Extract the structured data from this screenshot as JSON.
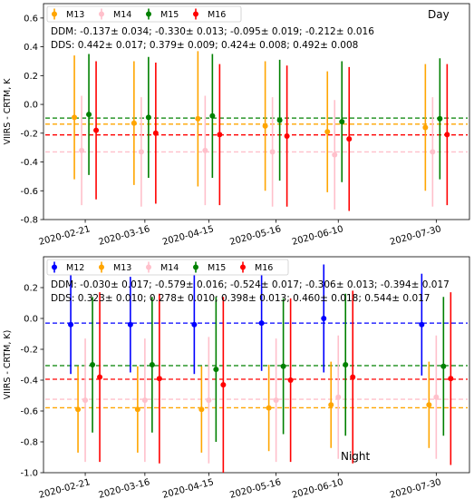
{
  "chart_data": [
    {
      "type": "scatter",
      "panel_label": "Day",
      "ylabel": "VIIRS - CRTM, K",
      "ylim": [
        -0.8,
        0.7
      ],
      "yticks": [
        "0.6",
        "0.4",
        "0.2",
        "0.0",
        "-0.2",
        "-0.4",
        "-0.6",
        "-0.8"
      ],
      "x": [
        "2020-02-21",
        "2020-03-16",
        "2020-04-15",
        "2020-05-16",
        "2020-06-10",
        "2020-07-30"
      ],
      "legend_placement": "top-left",
      "stats": {
        "ddm": "DDM: -0.137± 0.034; -0.330± 0.013; -0.095± 0.019; -0.212± 0.016",
        "dds": "DDS:  0.442± 0.017;  0.379± 0.009;  0.424± 0.008;  0.492± 0.008"
      },
      "series": [
        {
          "name": "M13",
          "color": "#ffa500",
          "mean": -0.137,
          "y": [
            -0.09,
            -0.13,
            -0.1,
            -0.15,
            -0.19,
            -0.16
          ],
          "err": [
            0.43,
            0.43,
            0.47,
            0.45,
            0.42,
            0.44
          ]
        },
        {
          "name": "M14",
          "color": "#ffc0cb",
          "mean": -0.33,
          "y": [
            -0.32,
            -0.33,
            -0.32,
            -0.33,
            -0.35,
            -0.33
          ],
          "err": [
            0.38,
            0.38,
            0.38,
            0.38,
            0.38,
            0.38
          ]
        },
        {
          "name": "M15",
          "color": "#008000",
          "mean": -0.095,
          "y": [
            -0.07,
            -0.09,
            -0.08,
            -0.11,
            -0.12,
            -0.1
          ],
          "err": [
            0.42,
            0.42,
            0.43,
            0.42,
            0.42,
            0.42
          ]
        },
        {
          "name": "M16",
          "color": "#ff0000",
          "mean": -0.212,
          "y": [
            -0.18,
            -0.2,
            -0.21,
            -0.22,
            -0.24,
            -0.21
          ],
          "err": [
            0.48,
            0.49,
            0.49,
            0.49,
            0.5,
            0.49
          ]
        }
      ]
    },
    {
      "type": "scatter",
      "panel_label": "Night",
      "ylabel": "VIIRS - CRTM, K)",
      "ylim": [
        -1.0,
        0.4
      ],
      "yticks": [
        "0.2",
        "0.0",
        "-0.2",
        "-0.4",
        "-0.6",
        "-0.8",
        "-1.0"
      ],
      "x": [
        "2020-02-21",
        "2020-03-16",
        "2020-04-15",
        "2020-05-16",
        "2020-06-10",
        "2020-07-30"
      ],
      "legend_placement": "top-left",
      "stats": {
        "ddm": "DDM: -0.030± 0.017; -0.579± 0.016; -0.524± 0.017; -0.306± 0.013; -0.394± 0.017",
        "dds": "DDS:  0.323± 0.010;  0.278± 0.010;  0.398± 0.013;  0.460± 0.018;  0.544± 0.017"
      },
      "series": [
        {
          "name": "M12",
          "color": "#0000ff",
          "mean": -0.03,
          "y": [
            -0.04,
            -0.04,
            -0.04,
            -0.03,
            0.0,
            -0.04
          ],
          "err": [
            0.32,
            0.31,
            0.32,
            0.31,
            0.35,
            0.33
          ]
        },
        {
          "name": "M13",
          "color": "#ffa500",
          "mean": -0.579,
          "y": [
            -0.59,
            -0.59,
            -0.59,
            -0.58,
            -0.56,
            -0.56
          ],
          "err": [
            0.28,
            0.28,
            0.28,
            0.28,
            0.28,
            0.28
          ]
        },
        {
          "name": "M14",
          "color": "#ffc0cb",
          "mean": -0.524,
          "y": [
            -0.53,
            -0.53,
            -0.53,
            -0.53,
            -0.51,
            -0.51
          ],
          "err": [
            0.4,
            0.4,
            0.41,
            0.4,
            0.4,
            0.4
          ]
        },
        {
          "name": "M15",
          "color": "#008000",
          "mean": -0.306,
          "y": [
            -0.3,
            -0.3,
            -0.33,
            -0.31,
            -0.3,
            -0.31
          ],
          "err": [
            0.44,
            0.44,
            0.47,
            0.44,
            0.46,
            0.45
          ]
        },
        {
          "name": "M16",
          "color": "#ff0000",
          "mean": -0.394,
          "y": [
            -0.38,
            -0.39,
            -0.43,
            -0.4,
            -0.38,
            -0.39
          ],
          "err": [
            0.55,
            0.55,
            0.57,
            0.53,
            0.56,
            0.56
          ]
        }
      ]
    }
  ]
}
